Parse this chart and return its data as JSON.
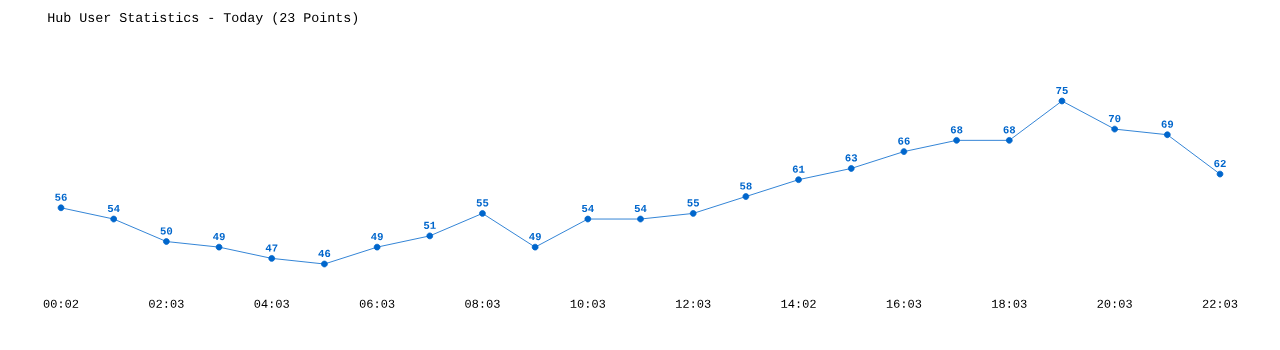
{
  "chart_data": {
    "type": "line",
    "title": "Hub User Statistics - Today (23 Points)",
    "categories": [
      "00:02",
      null,
      "02:03",
      null,
      "04:03",
      null,
      "06:03",
      null,
      "08:03",
      null,
      "10:03",
      null,
      "12:03",
      null,
      "14:02",
      null,
      "16:03",
      null,
      "18:03",
      null,
      "20:03",
      null,
      "22:03"
    ],
    "values": [
      56,
      54,
      50,
      49,
      47,
      46,
      49,
      51,
      55,
      49,
      54,
      54,
      55,
      58,
      61,
      63,
      66,
      68,
      68,
      75,
      70,
      69,
      62
    ],
    "color": "#0066cc",
    "marker": "circle",
    "line_style": "solid",
    "data_labels": true,
    "grid": false
  }
}
